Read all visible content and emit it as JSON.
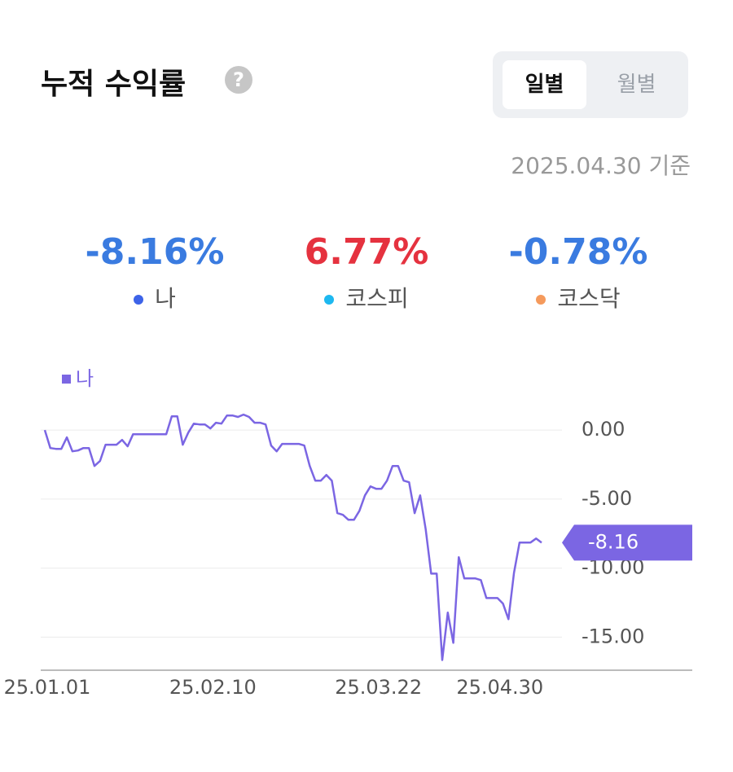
{
  "header": {
    "title": "누적 수익률",
    "help_icon": "?"
  },
  "toggle": {
    "options": [
      "일별",
      "월별"
    ],
    "selected": 0
  },
  "as_of": "2025.04.30 기준",
  "summary": [
    {
      "value": "-8.16%",
      "label": "나",
      "value_color": "#3a7be0",
      "dot_color": "#3d63e8"
    },
    {
      "value": "6.77%",
      "label": "코스피",
      "value_color": "#e5323f",
      "dot_color": "#1db8f0"
    },
    {
      "value": "-0.78%",
      "label": "코스닥",
      "value_color": "#3a7be0",
      "dot_color": "#f59a5c"
    }
  ],
  "chart_data": {
    "type": "line",
    "categories": [
      "25.01.01",
      null,
      null,
      null,
      null,
      null,
      null,
      null,
      null,
      null,
      null,
      null,
      null,
      null,
      null,
      null,
      null,
      null,
      null,
      null,
      null,
      null,
      null,
      null,
      null,
      null,
      null,
      null,
      null,
      null,
      "25.02.10",
      null,
      null,
      null,
      null,
      null,
      null,
      null,
      null,
      null,
      null,
      null,
      null,
      null,
      null,
      null,
      null,
      null,
      null,
      null,
      null,
      null,
      null,
      null,
      null,
      null,
      null,
      null,
      null,
      null,
      "25.03.22",
      null,
      null,
      null,
      null,
      null,
      null,
      null,
      null,
      null,
      null,
      null,
      null,
      null,
      null,
      null,
      null,
      null,
      null,
      null,
      null,
      null,
      "25.04.30",
      null,
      null,
      null,
      null,
      null,
      null,
      null,
      null
    ],
    "series": [
      {
        "name": "나",
        "color": "#7b66e3",
        "values": [
          0,
          -1.3,
          -1.36,
          -1.36,
          -0.53,
          -1.54,
          -1.48,
          -1.3,
          -1.3,
          -2.6,
          -2.24,
          -1.06,
          -1.06,
          -1.06,
          -0.71,
          -1.18,
          -0.3,
          -0.3,
          -0.3,
          -0.3,
          -0.3,
          -0.3,
          -0.3,
          1.0,
          1.0,
          -1.06,
          -0.18,
          0.47,
          0.41,
          0.41,
          0.12,
          0.53,
          0.47,
          1.06,
          1.06,
          0.95,
          1.12,
          0.95,
          0.53,
          0.53,
          0.41,
          -1.12,
          -1.54,
          -1.0,
          -1.0,
          -1.0,
          -1.0,
          -1.12,
          -2.6,
          -3.66,
          -3.66,
          -3.25,
          -3.66,
          -6.02,
          -6.14,
          -6.5,
          -6.5,
          -5.85,
          -4.73,
          -4.08,
          -4.25,
          -4.25,
          -3.66,
          -2.6,
          -2.6,
          -3.66,
          -3.78,
          -6.02,
          -4.73,
          -7.2,
          -10.4,
          -10.4,
          -16.66,
          -13.23,
          -15.42,
          -9.21,
          -10.75,
          -10.75,
          -10.75,
          -10.87,
          -12.17,
          -12.17,
          -12.17,
          -12.58,
          -13.7,
          -10.34,
          -8.15,
          -8.15,
          -8.15,
          -7.86,
          -8.16
        ]
      }
    ],
    "ylim": [
      -17.4,
      2.25
    ],
    "yticks": [
      {
        "value": 0,
        "label": "0.00"
      },
      {
        "value": -5,
        "label": "-5.00"
      },
      {
        "value": -10,
        "label": "-10.00"
      },
      {
        "value": -15,
        "label": "-15.00"
      }
    ],
    "grid": true
  }
}
